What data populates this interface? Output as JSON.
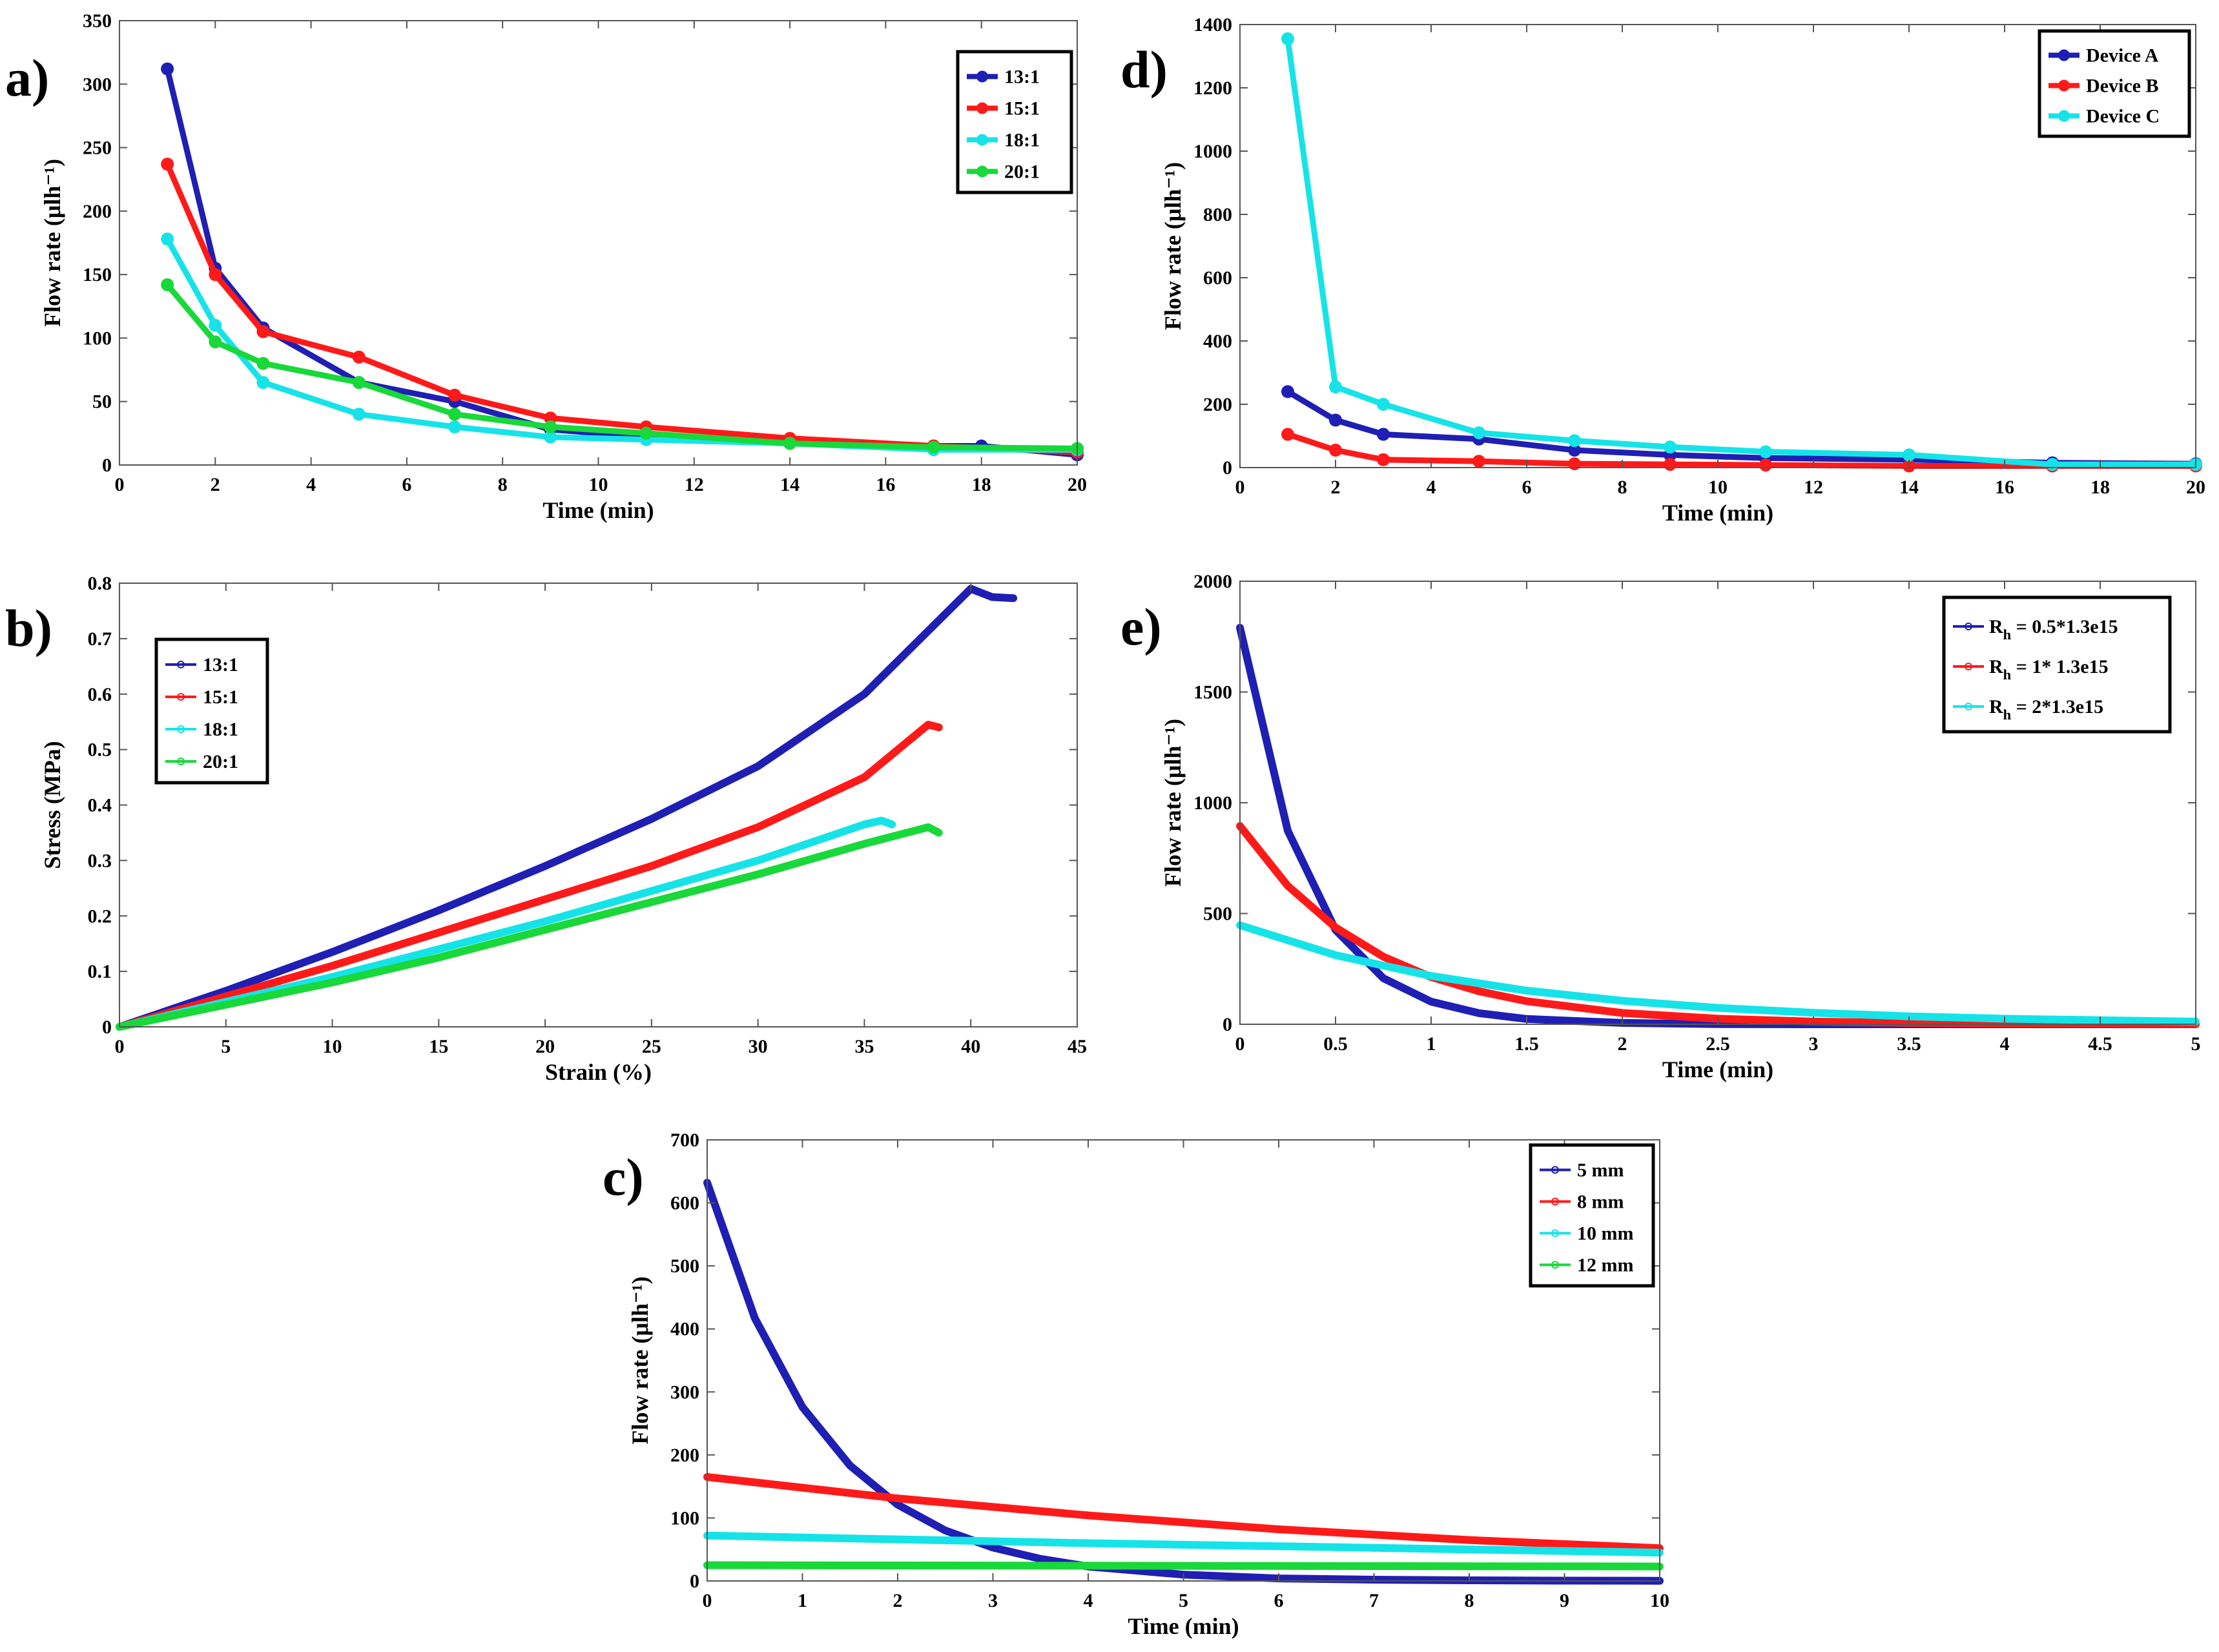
{
  "colors": {
    "blue": "#1f1fb4",
    "red": "#ff1a1a",
    "cyan": "#16e3e8",
    "green": "#18d83a"
  },
  "chart_data": [
    {
      "id": "a",
      "type": "line",
      "panel_label": "a)",
      "xlabel": "Time (min)",
      "ylabel": "Flow rate (μlh⁻¹)",
      "ylabel_super": "-1",
      "xlim": [
        0,
        20
      ],
      "ylim": [
        0,
        350
      ],
      "xticks": [
        "0",
        "2",
        "4",
        "6",
        "8",
        "10",
        "12",
        "14",
        "16",
        "18",
        "20"
      ],
      "yticks": [
        "0",
        "50",
        "100",
        "150",
        "200",
        "250",
        "300",
        "350"
      ],
      "legend": "top-right",
      "series": [
        {
          "name": "13:1",
          "color": "blue",
          "x": [
            1,
            2,
            3,
            5,
            7,
            9,
            11,
            14,
            17,
            18,
            20
          ],
          "y": [
            312,
            155,
            108,
            65,
            50,
            28,
            22,
            18,
            15,
            15,
            8
          ]
        },
        {
          "name": "15:1",
          "color": "red",
          "x": [
            1,
            2,
            3,
            5,
            7,
            9,
            11,
            14,
            17,
            20
          ],
          "y": [
            237,
            150,
            105,
            85,
            55,
            37,
            30,
            21,
            15,
            10
          ]
        },
        {
          "name": "18:1",
          "color": "cyan",
          "x": [
            1,
            2,
            3,
            5,
            7,
            9,
            11,
            14,
            17,
            20
          ],
          "y": [
            178,
            110,
            65,
            40,
            30,
            22,
            20,
            17,
            12,
            12
          ]
        },
        {
          "name": "20:1",
          "color": "green",
          "x": [
            1,
            2,
            3,
            5,
            7,
            9,
            11,
            14,
            17,
            20
          ],
          "y": [
            142,
            97,
            80,
            65,
            40,
            30,
            25,
            17,
            14,
            13
          ]
        }
      ]
    },
    {
      "id": "b",
      "type": "line",
      "panel_label": "b)",
      "xlabel": "Strain (%)",
      "ylabel": "Stress (MPa)",
      "xlim": [
        0,
        45
      ],
      "ylim": [
        0,
        0.8
      ],
      "xticks": [
        "0",
        "5",
        "10",
        "15",
        "20",
        "25",
        "30",
        "35",
        "40",
        "45"
      ],
      "yticks": [
        "0",
        "0.1",
        "0.2",
        "0.3",
        "0.4",
        "0.5",
        "0.6",
        "0.7",
        "0.8"
      ],
      "legend": "top-left",
      "series": [
        {
          "name": "13:1",
          "color": "blue",
          "x": [
            0,
            5,
            10,
            15,
            20,
            25,
            30,
            35,
            40,
            41,
            42
          ],
          "y": [
            0,
            0.065,
            0.135,
            0.21,
            0.29,
            0.375,
            0.47,
            0.6,
            0.79,
            0.775,
            0.773
          ]
        },
        {
          "name": "15:1",
          "color": "red",
          "x": [
            0,
            5,
            10,
            15,
            20,
            25,
            30,
            35,
            38,
            38.5
          ],
          "y": [
            0,
            0.055,
            0.11,
            0.17,
            0.23,
            0.29,
            0.36,
            0.45,
            0.545,
            0.54
          ]
        },
        {
          "name": "18:1",
          "color": "cyan",
          "x": [
            0,
            5,
            10,
            15,
            20,
            25,
            30,
            35,
            35.8,
            36.3
          ],
          "y": [
            0,
            0.045,
            0.09,
            0.14,
            0.19,
            0.245,
            0.3,
            0.365,
            0.372,
            0.365
          ]
        },
        {
          "name": "20:1",
          "color": "green",
          "x": [
            0,
            5,
            10,
            15,
            20,
            25,
            30,
            35,
            38,
            38.5
          ],
          "y": [
            0,
            0.04,
            0.08,
            0.125,
            0.175,
            0.225,
            0.275,
            0.33,
            0.36,
            0.35
          ]
        }
      ]
    },
    {
      "id": "c",
      "type": "line",
      "panel_label": "c)",
      "xlabel": "Time (min)",
      "ylabel": "Flow rate (μlh⁻¹)",
      "ylabel_super": "-1",
      "xlim": [
        0,
        10
      ],
      "ylim": [
        0,
        700
      ],
      "xticks": [
        "0",
        "1",
        "2",
        "3",
        "4",
        "5",
        "6",
        "7",
        "8",
        "9",
        "10"
      ],
      "yticks": [
        "0",
        "100",
        "200",
        "300",
        "400",
        "500",
        "600",
        "700"
      ],
      "legend": "top-right",
      "series": [
        {
          "name": "5 mm",
          "color": "blue",
          "x": [
            0,
            0.5,
            1,
            1.5,
            2,
            2.5,
            3,
            3.5,
            4,
            5,
            6,
            7,
            8,
            9,
            10
          ],
          "y": [
            632,
            417,
            276,
            183,
            121,
            80,
            53,
            35,
            23,
            10,
            4,
            2,
            1,
            0.5,
            0.3
          ]
        },
        {
          "name": "8 mm",
          "color": "red",
          "x": [
            0,
            2,
            4,
            6,
            8,
            10
          ],
          "y": [
            165,
            131,
            104,
            82,
            65,
            52
          ]
        },
        {
          "name": "10 mm",
          "color": "cyan",
          "x": [
            0,
            2,
            4,
            6,
            8,
            10
          ],
          "y": [
            72,
            66,
            60,
            55,
            50,
            45
          ]
        },
        {
          "name": "12 mm",
          "color": "green",
          "x": [
            0,
            2,
            4,
            6,
            8,
            10
          ],
          "y": [
            25,
            24.6,
            24.2,
            23.8,
            23.4,
            23
          ]
        }
      ]
    },
    {
      "id": "d",
      "type": "line",
      "panel_label": "d)",
      "xlabel": "Time (min)",
      "ylabel": "Flow rate (μlh⁻¹)",
      "ylabel_super": "-1",
      "xlim": [
        0,
        20
      ],
      "ylim": [
        0,
        1400
      ],
      "xticks": [
        "0",
        "2",
        "4",
        "6",
        "8",
        "10",
        "12",
        "14",
        "16",
        "18",
        "20"
      ],
      "yticks": [
        "0",
        "200",
        "400",
        "600",
        "800",
        "1000",
        "1200",
        "1400"
      ],
      "legend": "top-right",
      "series": [
        {
          "name": "Device A",
          "color": "blue",
          "x": [
            1,
            2,
            3,
            5,
            7,
            9,
            11,
            14,
            17,
            20
          ],
          "y": [
            240,
            150,
            105,
            90,
            55,
            40,
            30,
            25,
            15,
            12
          ]
        },
        {
          "name": "Device B",
          "color": "red",
          "x": [
            1,
            2,
            3,
            5,
            7,
            9,
            11,
            14,
            17,
            20
          ],
          "y": [
            105,
            55,
            25,
            20,
            12,
            10,
            8,
            5,
            5,
            5
          ]
        },
        {
          "name": "Device C",
          "color": "cyan",
          "x": [
            1,
            2,
            3,
            5,
            7,
            9,
            11,
            14,
            17,
            20
          ],
          "y": [
            1355,
            255,
            200,
            110,
            85,
            65,
            50,
            40,
            10,
            10
          ]
        }
      ]
    },
    {
      "id": "e",
      "type": "line",
      "panel_label": "e)",
      "xlabel": "Time (min)",
      "ylabel": "Flow rate (μlh⁻¹)",
      "ylabel_super": "-1",
      "xlim": [
        0,
        5
      ],
      "ylim": [
        0,
        2000
      ],
      "xticks": [
        "0",
        "0.5",
        "1",
        "1.5",
        "2",
        "2.5",
        "3",
        "3.5",
        "4",
        "4.5",
        "5"
      ],
      "yticks": [
        "0",
        "500",
        "1000",
        "1500",
        "2000"
      ],
      "legend": "top-right",
      "series": [
        {
          "name": "Rh = 0.5*1.3e15",
          "legend_main": "R",
          "legend_sub": "h",
          "legend_rest": " = 0.5*1.3e15",
          "color": "blue",
          "x": [
            0,
            0.25,
            0.5,
            0.75,
            1,
            1.25,
            1.5,
            2,
            2.5,
            3,
            4,
            5
          ],
          "y": [
            1790,
            874,
            426,
            208,
            102,
            50,
            24,
            6,
            1,
            0,
            0,
            0
          ]
        },
        {
          "name": "Rh = 1* 1.3e15",
          "legend_main": "R",
          "legend_sub": "h",
          "legend_rest": " = 1* 1.3e15",
          "color": "red",
          "x": [
            0,
            0.25,
            0.5,
            0.75,
            1,
            1.25,
            1.5,
            2,
            2.5,
            3,
            3.5,
            4,
            5
          ],
          "y": [
            895,
            625,
            437,
            305,
            213,
            149,
            104,
            51,
            25,
            12,
            6,
            3,
            1
          ]
        },
        {
          "name": "Rh = 2*1.3e15",
          "legend_main": "R",
          "legend_sub": "h",
          "legend_rest": " = 2*1.3e15",
          "color": "cyan",
          "x": [
            0,
            0.5,
            1,
            1.5,
            2,
            2.5,
            3,
            3.5,
            4,
            4.5,
            5
          ],
          "y": [
            447,
            312,
            218,
            152,
            106,
            74,
            52,
            36,
            25,
            18,
            12
          ]
        }
      ]
    }
  ]
}
